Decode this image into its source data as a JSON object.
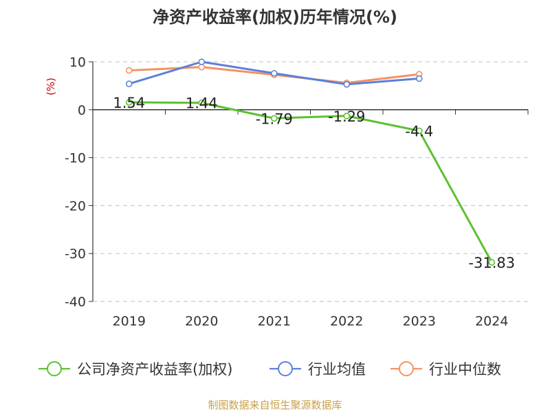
{
  "chart_data": {
    "type": "line",
    "title": "净资产收益率(加权)历年情况(%)",
    "ylabel": "(%)",
    "xlabel": "",
    "ylim": [
      -40,
      10
    ],
    "yticks": [
      10,
      0,
      -10,
      -20,
      -30,
      -40
    ],
    "grid": true,
    "legend_position": "bottom",
    "categories": [
      "2019",
      "2020",
      "2021",
      "2022",
      "2023",
      "2024"
    ],
    "series": [
      {
        "name": "公司净资产收益率(加权)",
        "color": "#5bc12f",
        "values": [
          1.54,
          1.44,
          -1.79,
          -1.29,
          -4.4,
          -31.83
        ],
        "labels": [
          "1.54",
          "1.44",
          "-1.79",
          "-1.29",
          "-4.4",
          "-31.83"
        ]
      },
      {
        "name": "行业均值",
        "color": "#5b7fdc",
        "values": [
          5.4,
          10.0,
          7.6,
          5.3,
          6.5,
          null
        ]
      },
      {
        "name": "行业中位数",
        "color": "#f59160",
        "values": [
          8.2,
          8.9,
          7.3,
          5.6,
          7.4,
          null
        ]
      }
    ]
  },
  "footer": {
    "source": "制图数据来自恒生聚源数据库"
  },
  "colors": {
    "ylabel": "#cc0000",
    "source": "#c8a04a",
    "axis": "#333333",
    "grid": "#cccccc"
  }
}
